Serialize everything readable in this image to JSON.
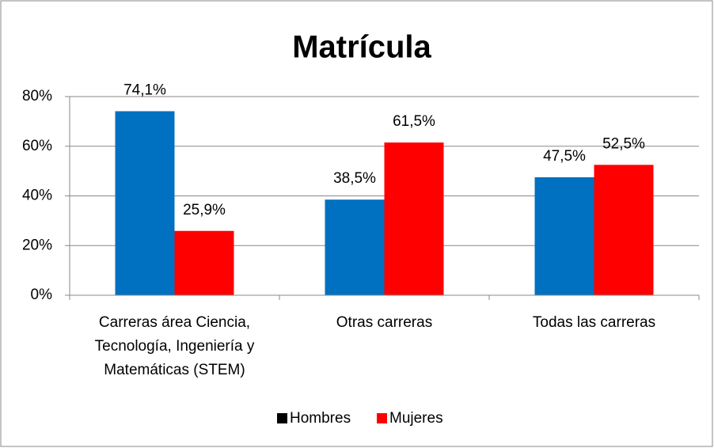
{
  "chart_data": {
    "type": "bar",
    "title": "Matrícula",
    "categories": [
      "Carreras área Ciencia, Tecnología, Ingeniería y Matemáticas (STEM)",
      "Otras carreras",
      "Todas las carreras"
    ],
    "series": [
      {
        "name": "Hombres",
        "color": "#0070c0",
        "values": [
          74.1,
          38.5,
          47.5
        ],
        "value_labels": [
          "74,1%",
          "38,5%",
          "47,5%"
        ]
      },
      {
        "name": "Mujeres",
        "color": "#ff0000",
        "values": [
          25.9,
          61.5,
          52.5
        ],
        "value_labels": [
          "25,9%",
          "61,5%",
          "52,5%"
        ]
      }
    ],
    "legend_marker_colors": [
      "#000000",
      "#ff0000"
    ],
    "ylim": [
      0,
      80
    ],
    "yticks": [
      {
        "value": 0,
        "label": "0%"
      },
      {
        "value": 20,
        "label": "20%"
      },
      {
        "value": 40,
        "label": "40%"
      },
      {
        "value": 60,
        "label": "60%"
      },
      {
        "value": 80,
        "label": "80%"
      }
    ],
    "grid": true,
    "legend": "bottom"
  }
}
